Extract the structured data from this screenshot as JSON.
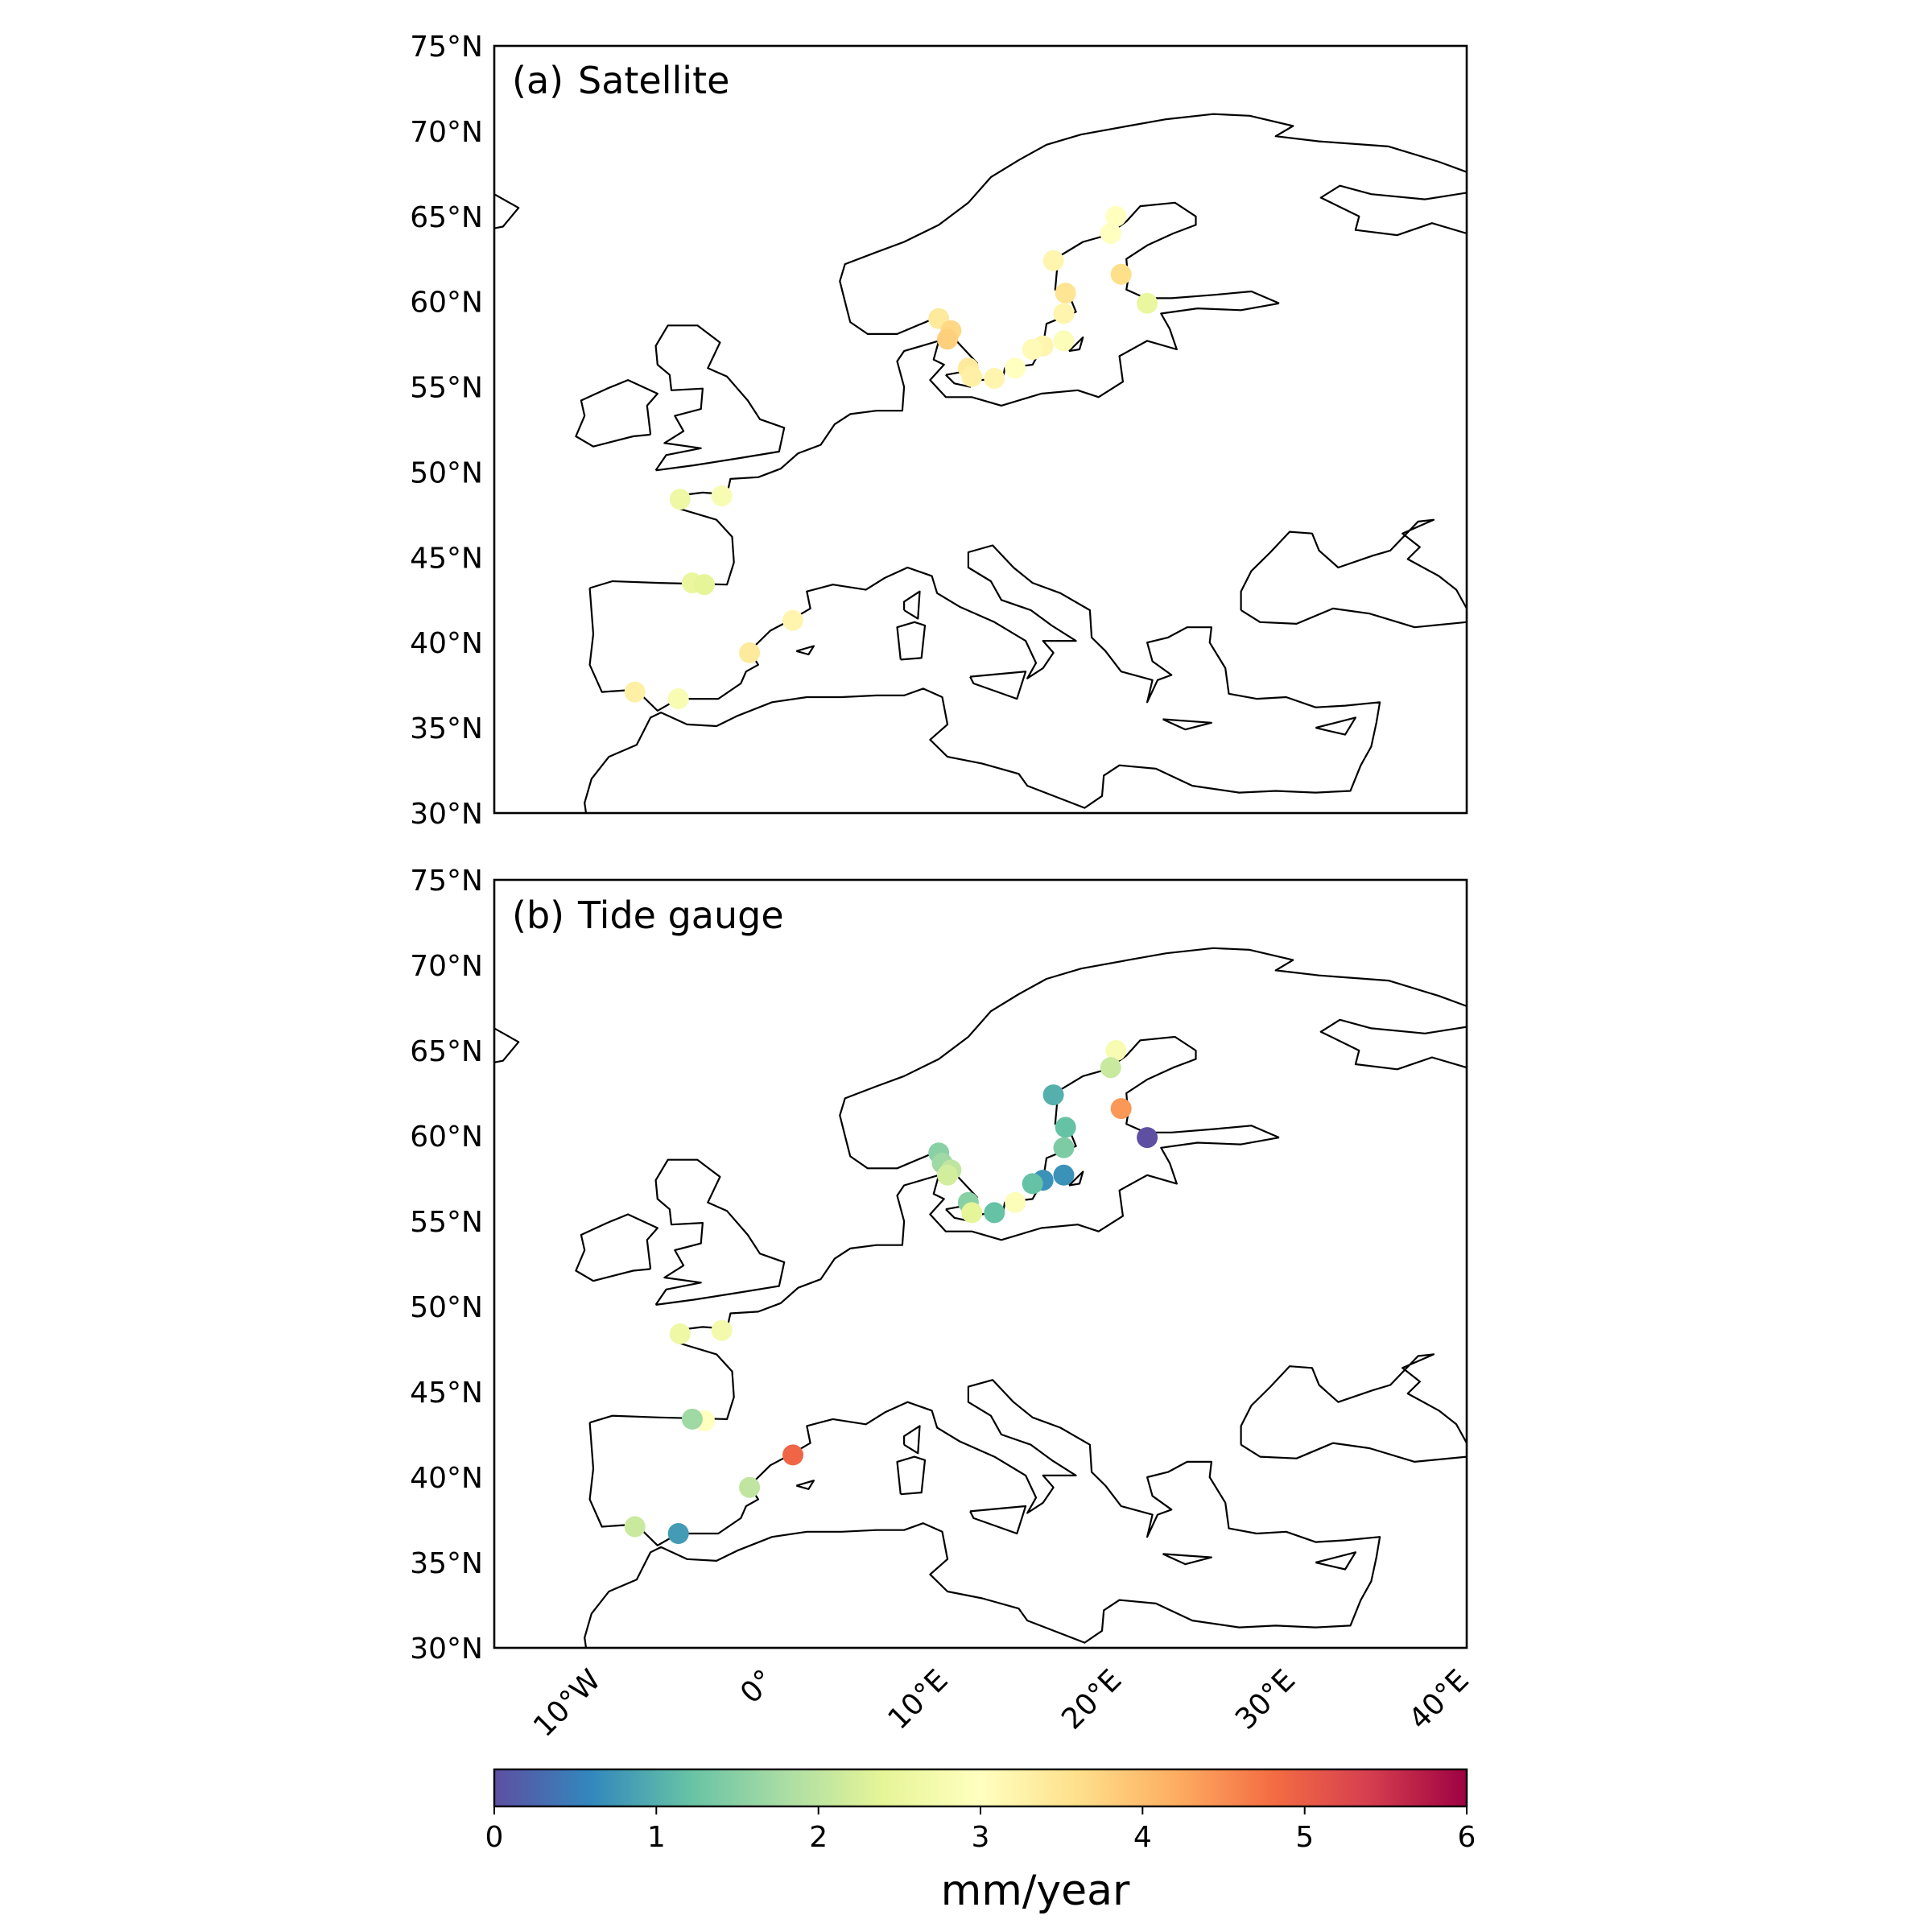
{
  "colorbar": {
    "min": 0,
    "max": 6,
    "ticks": [
      "0",
      "1",
      "2",
      "3",
      "4",
      "5",
      "6"
    ],
    "label": "mm/year",
    "colormap": [
      "#5e4fa2",
      "#3288bd",
      "#66c2a5",
      "#abdda4",
      "#e6f598",
      "#ffffbf",
      "#fee08b",
      "#fdae61",
      "#f46d43",
      "#d53e4f",
      "#9e0142"
    ]
  },
  "map": {
    "lon_range": [
      -15,
      41
    ],
    "lat_range": [
      30,
      75
    ],
    "lat_ticks": [
      "30°N",
      "35°N",
      "40°N",
      "45°N",
      "50°N",
      "55°N",
      "60°N",
      "65°N",
      "70°N",
      "75°N"
    ],
    "lon_ticks": [
      "10°W",
      "0°",
      "10°E",
      "20°E",
      "30°E",
      "40°E"
    ]
  },
  "panels": [
    {
      "letter": "(a)",
      "title": "Satellite",
      "stations": [
        {
          "lon": 20.8,
          "lat": 65.0,
          "value": 3.0
        },
        {
          "lon": 20.5,
          "lat": 64.0,
          "value": 3.0
        },
        {
          "lon": 17.2,
          "lat": 62.4,
          "value": 3.2
        },
        {
          "lon": 21.1,
          "lat": 61.6,
          "value": 3.6
        },
        {
          "lon": 17.9,
          "lat": 60.5,
          "value": 3.5
        },
        {
          "lon": 22.6,
          "lat": 59.9,
          "value": 2.5
        },
        {
          "lon": 17.8,
          "lat": 59.3,
          "value": 3.2
        },
        {
          "lon": 10.6,
          "lat": 59.0,
          "value": 3.4
        },
        {
          "lon": 11.3,
          "lat": 58.3,
          "value": 3.7
        },
        {
          "lon": 11.1,
          "lat": 57.8,
          "value": 3.8
        },
        {
          "lon": 17.8,
          "lat": 57.7,
          "value": 2.9
        },
        {
          "lon": 16.6,
          "lat": 57.4,
          "value": 3.2
        },
        {
          "lon": 16.0,
          "lat": 57.2,
          "value": 3.1
        },
        {
          "lon": 12.3,
          "lat": 56.1,
          "value": 3.4
        },
        {
          "lon": 15.0,
          "lat": 56.1,
          "value": 3.0
        },
        {
          "lon": 12.5,
          "lat": 55.6,
          "value": 3.3
        },
        {
          "lon": 13.8,
          "lat": 55.5,
          "value": 3.2
        },
        {
          "lon": -4.3,
          "lat": 48.4,
          "value": 2.6
        },
        {
          "lon": -1.9,
          "lat": 48.6,
          "value": 2.8
        },
        {
          "lon": -3.6,
          "lat": 43.5,
          "value": 2.5
        },
        {
          "lon": -2.9,
          "lat": 43.4,
          "value": 2.4
        },
        {
          "lon": 2.2,
          "lat": 41.3,
          "value": 3.2
        },
        {
          "lon": -0.3,
          "lat": 39.4,
          "value": 3.4
        },
        {
          "lon": -6.9,
          "lat": 37.1,
          "value": 3.3
        },
        {
          "lon": -4.4,
          "lat": 36.7,
          "value": 2.8
        }
      ]
    },
    {
      "letter": "(b)",
      "title": "Tide gauge",
      "stations": [
        {
          "lon": 20.8,
          "lat": 65.0,
          "value": 2.8
        },
        {
          "lon": 20.5,
          "lat": 64.0,
          "value": 2.1
        },
        {
          "lon": 17.2,
          "lat": 62.4,
          "value": 1.0
        },
        {
          "lon": 21.1,
          "lat": 61.6,
          "value": 4.4
        },
        {
          "lon": 17.9,
          "lat": 60.5,
          "value": 1.2
        },
        {
          "lon": 22.6,
          "lat": 59.9,
          "value": 0.0
        },
        {
          "lon": 17.8,
          "lat": 59.3,
          "value": 1.4
        },
        {
          "lon": 10.6,
          "lat": 59.0,
          "value": 1.5
        },
        {
          "lon": 10.8,
          "lat": 58.4,
          "value": 1.7
        },
        {
          "lon": 11.3,
          "lat": 58.0,
          "value": 2.0
        },
        {
          "lon": 11.1,
          "lat": 57.7,
          "value": 2.2
        },
        {
          "lon": 17.8,
          "lat": 57.7,
          "value": 0.7
        },
        {
          "lon": 16.6,
          "lat": 57.4,
          "value": 0.7
        },
        {
          "lon": 16.0,
          "lat": 57.2,
          "value": 1.2
        },
        {
          "lon": 12.3,
          "lat": 56.1,
          "value": 1.5
        },
        {
          "lon": 15.0,
          "lat": 56.1,
          "value": 2.9
        },
        {
          "lon": 12.5,
          "lat": 55.5,
          "value": 2.4
        },
        {
          "lon": 13.8,
          "lat": 55.5,
          "value": 1.2
        },
        {
          "lon": -4.3,
          "lat": 48.4,
          "value": 2.6
        },
        {
          "lon": -1.9,
          "lat": 48.6,
          "value": 2.7
        },
        {
          "lon": -2.9,
          "lat": 43.3,
          "value": 3.0
        },
        {
          "lon": -3.6,
          "lat": 43.4,
          "value": 1.7
        },
        {
          "lon": 2.2,
          "lat": 41.3,
          "value": 4.9
        },
        {
          "lon": -0.3,
          "lat": 39.4,
          "value": 2.0
        },
        {
          "lon": -6.9,
          "lat": 37.1,
          "value": 2.1
        },
        {
          "lon": -4.4,
          "lat": 36.7,
          "value": 0.8
        }
      ]
    }
  ],
  "colors": {
    "land_outline": "#000000",
    "background": "#ffffff"
  }
}
